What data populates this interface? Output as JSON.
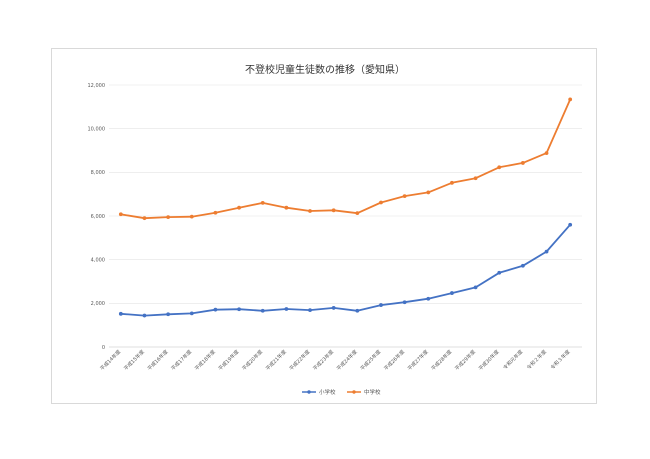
{
  "chart_data": {
    "type": "line",
    "title": "不登校児童生徒数の推移（愛知県）",
    "xlabel": "",
    "ylabel": "",
    "categories": [
      "平成14年度",
      "平成15年度",
      "平成16年度",
      "平成17年度",
      "平成18年度",
      "平成19年度",
      "平成20年度",
      "平成21年度",
      "平成22年度",
      "平成23年度",
      "平成24年度",
      "平成25年度",
      "平成26年度",
      "平成27年度",
      "平成28年度",
      "平成29年度",
      "平成30年度",
      "令和元年度",
      "令和２年度",
      "令和３年度"
    ],
    "ylim": [
      0,
      12000
    ],
    "yticks": [
      "0",
      "2,000",
      "4,000",
      "6,000",
      "8,000",
      "10,000",
      "12,000"
    ],
    "grid": true,
    "legend": "bottom",
    "series": [
      {
        "name": "小学校",
        "color": "#4472c4",
        "values": [
          1520,
          1440,
          1500,
          1540,
          1710,
          1730,
          1660,
          1740,
          1690,
          1790,
          1660,
          1920,
          2050,
          2210,
          2470,
          2730,
          3400,
          3720,
          4370,
          5600
        ]
      },
      {
        "name": "中学校",
        "color": "#ed7d31",
        "values": [
          6080,
          5900,
          5950,
          5970,
          6150,
          6380,
          6600,
          6380,
          6230,
          6260,
          6130,
          6620,
          6910,
          7080,
          7520,
          7730,
          8230,
          8430,
          8880,
          11340
        ]
      }
    ]
  }
}
